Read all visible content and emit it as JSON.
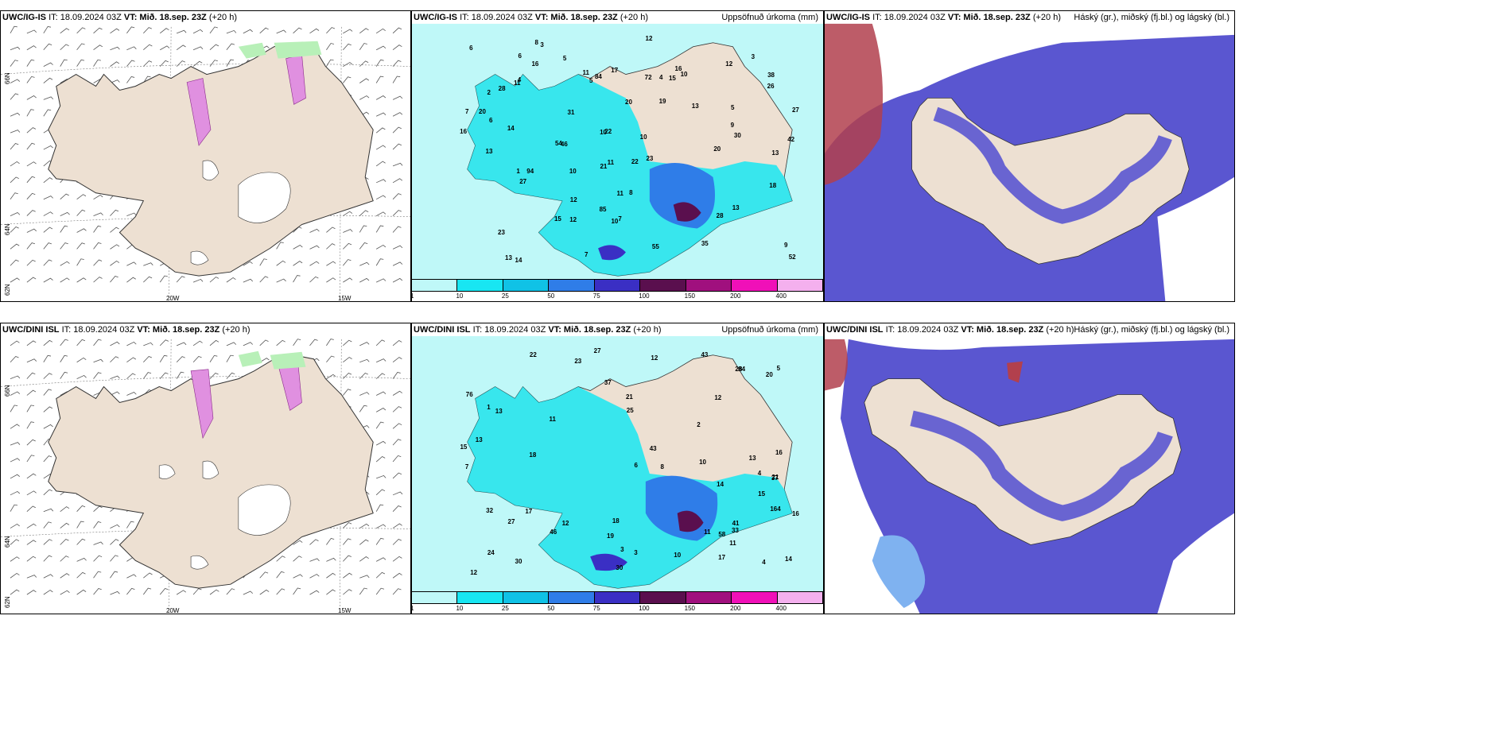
{
  "panels": {
    "top_left": {
      "model": "UWC/IG-IS",
      "it_label": "IT: 18.09.2024 03Z",
      "vt_label": "VT: Mið. 18.sep. 23Z",
      "lead": "(+20 h)",
      "right_title": ""
    },
    "top_mid": {
      "model": "UWC/IG-IS",
      "it_label": "IT: 18.09.2024 03Z",
      "vt_label": "VT: Mið. 18.sep. 23Z",
      "lead": "(+20 h)",
      "right_title": "Uppsöfnuð úrkoma (mm)"
    },
    "top_right": {
      "model": "UWC/IG-IS",
      "it_label": "IT: 18.09.2024 03Z",
      "vt_label": "VT: Mið. 18.sep. 23Z",
      "lead": "(+20 h)",
      "right_title": "Háský (gr.), miðský (fj.bl.) og lágský (bl.)"
    },
    "bot_left": {
      "model": "UWC/DINI ISL",
      "it_label": "IT: 18.09.2024 03Z",
      "vt_label": "VT: Mið. 18.sep. 23Z",
      "lead": "(+20 h)",
      "right_title": ""
    },
    "bot_mid": {
      "model": "UWC/DINI ISL",
      "it_label": "IT: 18.09.2024 03Z",
      "vt_label": "VT: Mið. 18.sep. 23Z",
      "lead": "(+20 h)",
      "right_title": "Uppsöfnuð úrkoma (mm)"
    },
    "bot_right": {
      "model": "UWC/DINI ISL",
      "it_label": "IT: 18.09.2024 03Z",
      "vt_label": "VT: Mið. 18.sep. 23Z",
      "lead": "(+20 h)",
      "right_title": "Háský (gr.), miðský (fj.bl.) og lágský (bl.)"
    }
  },
  "grid_labels": {
    "lat_66": "66N",
    "lat_64": "64N",
    "lat_62": "62N",
    "lon_20": "20W",
    "lon_15": "15W"
  },
  "colorbar": {
    "ticks": [
      "1",
      "10",
      "25",
      "50",
      "75",
      "100",
      "150",
      "200",
      "400"
    ],
    "colors": [
      "#bff8f8",
      "#18e6f2",
      "#10c2e6",
      "#2f7de8",
      "#3a2fc4",
      "#5a0f4e",
      "#a0107e",
      "#f010b8",
      "#f4b0ee"
    ]
  },
  "precip_top": [
    "38",
    "20",
    "23",
    "7",
    "10",
    "15",
    "14",
    "12",
    "10",
    "9",
    "30",
    "27",
    "27",
    "13",
    "11",
    "18",
    "22",
    "16",
    "31",
    "20",
    "12",
    "10",
    "10",
    "13",
    "12",
    "20",
    "16",
    "11",
    "21",
    "52",
    "35",
    "54",
    "85",
    "94",
    "55",
    "42",
    "26",
    "11",
    "28",
    "19",
    "13",
    "17",
    "16",
    "13",
    "12",
    "15",
    "22",
    "14",
    "23",
    "46",
    "28",
    "5",
    "72",
    "84",
    "3",
    "7",
    "8",
    "5",
    "6",
    "1",
    "2",
    "9",
    "7",
    "6",
    "13",
    "4",
    "3",
    "5",
    "10",
    "11",
    "8",
    "4",
    "6"
  ],
  "precip_bot": [
    "37",
    "32",
    "30",
    "21",
    "15",
    "23",
    "12",
    "10",
    "16",
    "18",
    "10",
    "13",
    "12",
    "25",
    "18",
    "30",
    "20",
    "27",
    "16",
    "11",
    "12",
    "14",
    "13",
    "15",
    "11",
    "12",
    "22",
    "21",
    "46",
    "37",
    "33",
    "58",
    "76",
    "43",
    "41",
    "27",
    "11",
    "28",
    "17",
    "19",
    "17",
    "14",
    "13",
    "24",
    "43",
    "84",
    "164",
    "8",
    "3",
    "4",
    "7",
    "1",
    "2",
    "3",
    "4",
    "5",
    "6"
  ],
  "colors": {
    "land": "#ede0d2",
    "precip_bg": "#bff8f8",
    "cloud_mid": "#5a56d0",
    "cloud_low": "#3f7ee8",
    "cloud_high": "#b2404d"
  }
}
